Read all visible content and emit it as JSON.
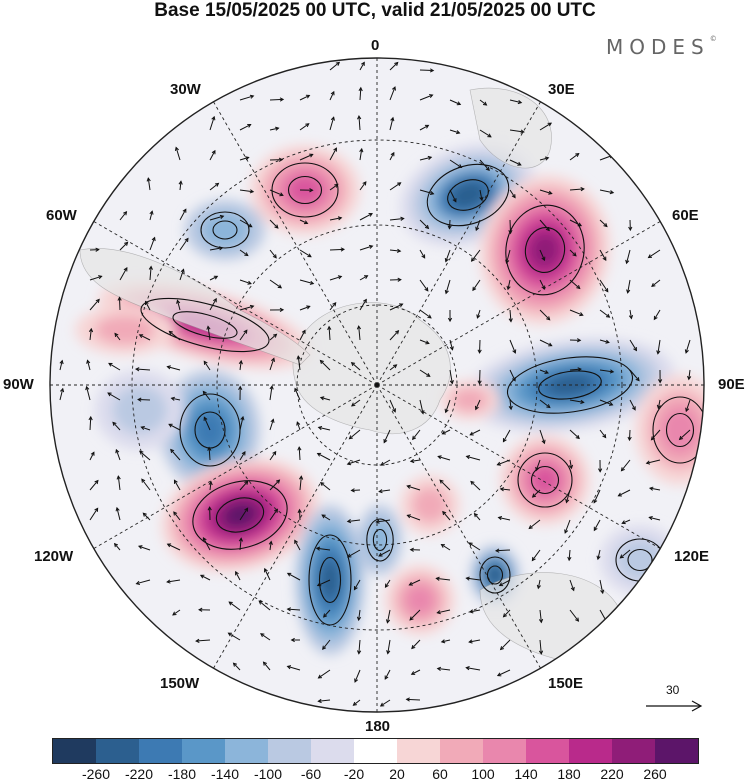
{
  "title": "Base 15/05/2025 00 UTC, valid 21/05/2025 00 UTC",
  "brand": "MODES",
  "brand_mark": "©",
  "longitude_labels": [
    "0",
    "30E",
    "60E",
    "90E",
    "120E",
    "150E",
    "180",
    "150W",
    "120W",
    "90W",
    "60W",
    "30W"
  ],
  "wind_scale_label": "30",
  "colorbar": {
    "ticks": [
      "-260",
      "-220",
      "-180",
      "-140",
      "-100",
      "-60",
      "-20",
      "20",
      "60",
      "100",
      "140",
      "180",
      "220",
      "260"
    ],
    "colors": [
      "#1f3a5f",
      "#2c5f8f",
      "#3d7ab3",
      "#5a97c8",
      "#8cb5da",
      "#bac9e2",
      "#dcdced",
      "#ffffff",
      "#f7d6d6",
      "#f1aab8",
      "#e987ad",
      "#d9559d",
      "#b92a8b",
      "#8f1d78",
      "#5c1569"
    ]
  }
}
